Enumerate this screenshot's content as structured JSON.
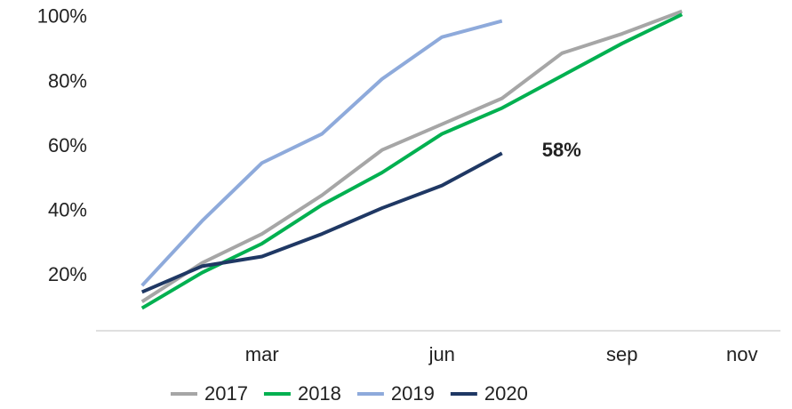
{
  "chart_data": {
    "type": "line",
    "categories": [
      null,
      null,
      "mar",
      null,
      null,
      "jun",
      null,
      null,
      "sep",
      null,
      "nov"
    ],
    "ylim": [
      3,
      103
    ],
    "yticks": [
      {
        "value": 20,
        "label": "20%"
      },
      {
        "value": 40,
        "label": "40%"
      },
      {
        "value": 60,
        "label": "60%"
      },
      {
        "value": 80,
        "label": "80%"
      },
      {
        "value": 100,
        "label": "100%"
      }
    ],
    "series": [
      {
        "name": "2017",
        "color": "#a6a6a6",
        "values": [
          12,
          24,
          33,
          45,
          59,
          67,
          75,
          89,
          95,
          102,
          null
        ]
      },
      {
        "name": "2018",
        "color": "#00b050",
        "values": [
          10,
          21,
          30,
          42,
          52,
          64,
          72,
          82,
          92,
          101,
          null
        ]
      },
      {
        "name": "2019",
        "color": "#8eaadb",
        "values": [
          17,
          37,
          55,
          64,
          81,
          94,
          99,
          null,
          null,
          null,
          null
        ]
      },
      {
        "name": "2020",
        "color": "#1f3864",
        "values": [
          15,
          23,
          26,
          33,
          41,
          48,
          58,
          null,
          null,
          null,
          null
        ],
        "value_labels": [
          null,
          null,
          null,
          null,
          null,
          null,
          "58%",
          null,
          null,
          null,
          null
        ]
      }
    ]
  }
}
